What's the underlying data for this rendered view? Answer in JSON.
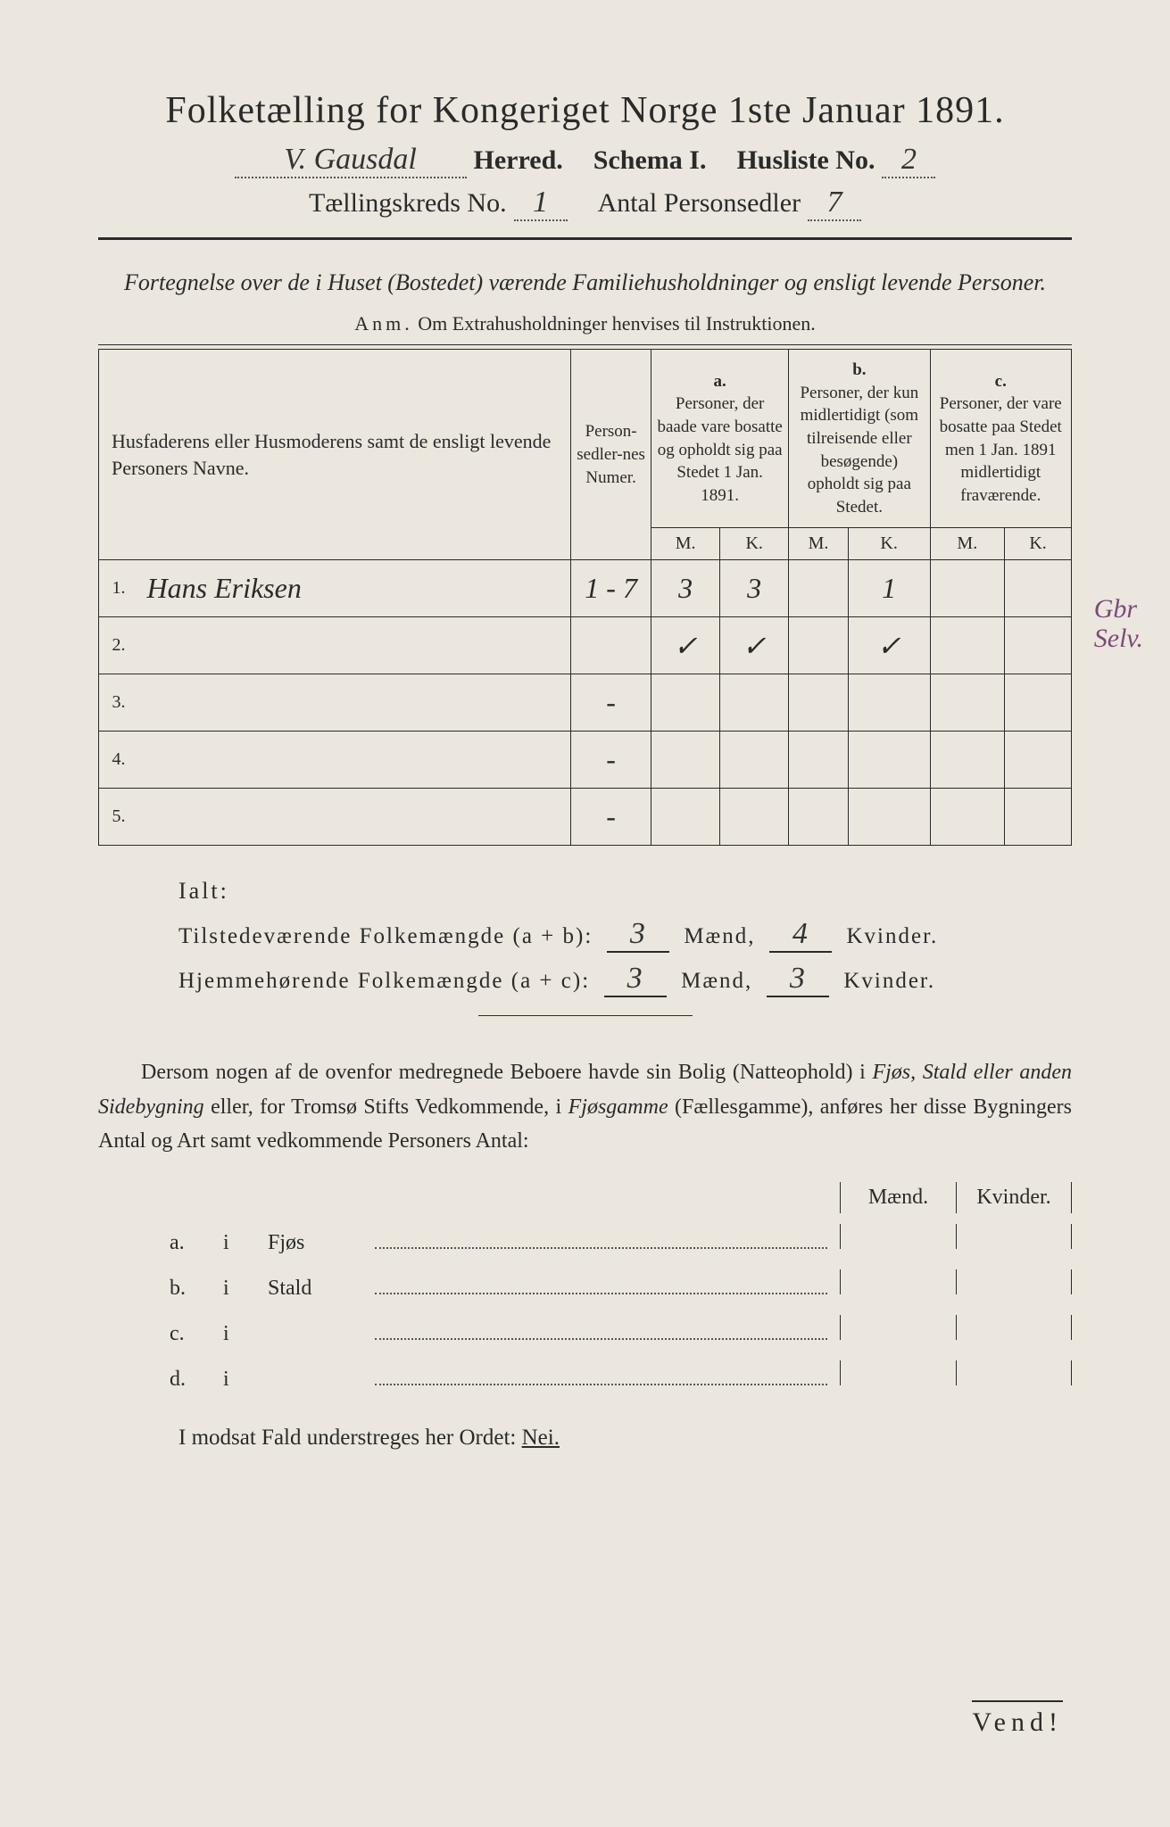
{
  "title": "Folketælling for Kongeriget Norge 1ste Januar 1891.",
  "header": {
    "herred_value": "V. Gausdal",
    "herred_label": "Herred.",
    "schema_label": "Schema I.",
    "husliste_label": "Husliste No.",
    "husliste_value": "2",
    "kreds_label": "Tællingskreds No.",
    "kreds_value": "1",
    "personsedler_label": "Antal Personsedler",
    "personsedler_value": "7"
  },
  "subtitle": "Fortegnelse over de i Huset (Bostedet) værende Familiehusholdninger og ensligt levende Personer.",
  "anm": {
    "label": "Anm.",
    "text": "Om Extrahusholdninger henvises til Instruktionen."
  },
  "table": {
    "col_names": "Husfaderens eller Husmoderens samt de ensligt levende Personers Navne.",
    "col_numer": "Person-sedler-nes Numer.",
    "col_a_label": "a.",
    "col_a_text": "Personer, der baade vare bosatte og opholdt sig paa Stedet 1 Jan. 1891.",
    "col_b_label": "b.",
    "col_b_text": "Personer, der kun midlertidigt (som tilreisende eller besøgende) opholdt sig paa Stedet.",
    "col_c_label": "c.",
    "col_c_text": "Personer, der vare bosatte paa Stedet men 1 Jan. 1891 midlertidigt fraværende.",
    "m": "M.",
    "k": "K.",
    "rows": [
      {
        "n": "1.",
        "name": "Hans Eriksen",
        "numer": "1 - 7",
        "a_m": "3",
        "a_k": "3",
        "b_m": "",
        "b_k": "1",
        "c_m": "",
        "c_k": ""
      },
      {
        "n": "2.",
        "name": "",
        "numer": "",
        "a_m": "✓",
        "a_k": "✓",
        "b_m": "",
        "b_k": "✓",
        "c_m": "",
        "c_k": ""
      },
      {
        "n": "3.",
        "name": "",
        "numer": "-",
        "a_m": "",
        "a_k": "",
        "b_m": "",
        "b_k": "",
        "c_m": "",
        "c_k": ""
      },
      {
        "n": "4.",
        "name": "",
        "numer": "-",
        "a_m": "",
        "a_k": "",
        "b_m": "",
        "b_k": "",
        "c_m": "",
        "c_k": ""
      },
      {
        "n": "5.",
        "name": "",
        "numer": "-",
        "a_m": "",
        "a_k": "",
        "b_m": "",
        "b_k": "",
        "c_m": "",
        "c_k": ""
      }
    ]
  },
  "margin_note": "Gbr\nSelv.",
  "ialt": {
    "label": "Ialt:",
    "line1_label": "Tilstedeværende Folkemængde (a + b):",
    "line1_m": "3",
    "line1_k": "4",
    "line2_label": "Hjemmehørende Folkemængde (a + c):",
    "line2_m": "3",
    "line2_k": "3",
    "maend": "Mænd,",
    "kvinder": "Kvinder."
  },
  "paragraph": {
    "p1": "Dersom nogen af de ovenfor medregnede Beboere havde sin Bolig (Natteophold) i ",
    "i1": "Fjøs, Stald eller anden Sidebygning",
    "p2": " eller, for Tromsø Stifts Vedkommende, i ",
    "i2": "Fjøsgamme",
    "p3": " (Fællesgamme), anføres her disse Bygningers Antal og Art samt vedkommende Personers Antal:"
  },
  "outbuildings": {
    "maend": "Mænd.",
    "kvinder": "Kvinder.",
    "rows": [
      {
        "label": "a.",
        "i": "i",
        "name": "Fjøs"
      },
      {
        "label": "b.",
        "i": "i",
        "name": "Stald"
      },
      {
        "label": "c.",
        "i": "i",
        "name": ""
      },
      {
        "label": "d.",
        "i": "i",
        "name": ""
      }
    ]
  },
  "nei": {
    "text": "I modsat Fald understreges her Ordet:",
    "nei": "Nei."
  },
  "vend": "Vend!"
}
